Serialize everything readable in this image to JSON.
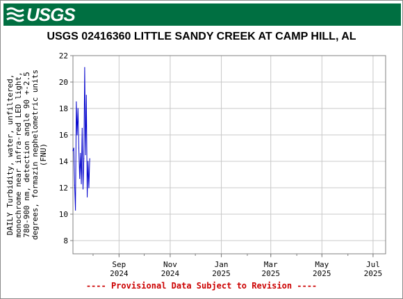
{
  "header": {
    "logo_text": "USGS",
    "logo_icon": "usgs-wave-icon",
    "banner_color": "#006f41"
  },
  "chart_data": {
    "type": "line",
    "title": "USGS 02416360 LITTLE SANDY CREEK AT CAMP HILL, AL",
    "ylabel": [
      "DAILY Turbidity, water, unfiltered,",
      "monochrome near infra-red LED light,",
      "780-900 nm, detection angle 90 +-2.5",
      "degrees, formazin nephelometric units",
      "(FNU)"
    ],
    "xlabel": "",
    "ylim": [
      7,
      22
    ],
    "yticks": [
      8,
      10,
      12,
      14,
      16,
      18,
      20,
      22
    ],
    "xlim": [
      "2024-07-08",
      "2025-07-16"
    ],
    "xticks": [
      {
        "date": "2024-09-01",
        "month": "Sep",
        "year": "2024"
      },
      {
        "date": "2024-11-01",
        "month": "Nov",
        "year": "2024"
      },
      {
        "date": "2025-01-01",
        "month": "Jan",
        "year": "2025"
      },
      {
        "date": "2025-03-01",
        "month": "Mar",
        "year": "2025"
      },
      {
        "date": "2025-05-01",
        "month": "May",
        "year": "2025"
      },
      {
        "date": "2025-07-01",
        "month": "Jul",
        "year": "2025"
      }
    ],
    "grid": true,
    "line_color": "#0000cc",
    "series": [
      {
        "x": [
          "2024-07-08",
          "2024-07-09",
          "2024-07-10",
          "2024-07-11",
          "2024-07-12",
          "2024-07-13",
          "2024-07-14",
          "2024-07-15",
          "2024-07-16",
          "2024-07-17",
          "2024-07-18",
          "2024-07-19",
          "2024-07-20",
          "2024-07-21",
          "2024-07-22",
          "2024-07-23",
          "2024-07-24",
          "2024-07-25",
          "2024-07-26",
          "2024-07-27",
          "2024-07-28"
        ],
        "values": [
          14.8,
          15.0,
          12.2,
          10.3,
          18.5,
          16.0,
          18.0,
          15.0,
          12.7,
          14.6,
          12.3,
          16.5,
          11.9,
          14.2,
          21.1,
          14.5,
          19.0,
          11.3,
          14.0,
          12.0,
          14.2
        ]
      }
    ]
  },
  "footer": {
    "notice": "---- Provisional Data Subject to Revision ----",
    "notice_color": "#cc0000"
  }
}
